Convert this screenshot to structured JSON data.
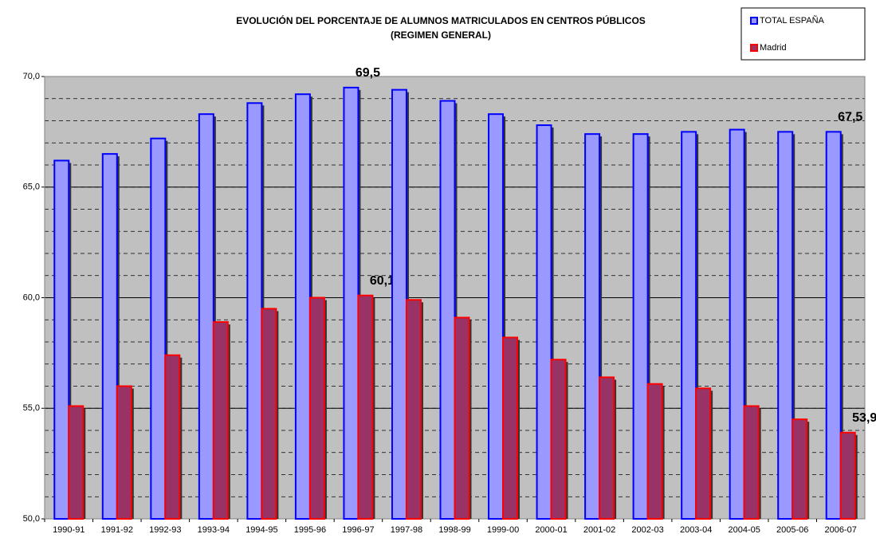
{
  "chart_data": {
    "type": "bar",
    "title": "EVOLUCIÓN DEL PORCENTAJE DE ALUMNOS MATRICULADOS EN CENTROS PÚBLICOS",
    "subtitle": "(REGIMEN GENERAL)",
    "categories": [
      "1990-91",
      "1991-92",
      "1992-93",
      "1993-94",
      "1994-95",
      "1995-96",
      "1996-97",
      "1997-98",
      "1998-99",
      "1999-00",
      "2000-01",
      "2001-02",
      "2002-03",
      "2003-04",
      "2004-05",
      "2005-06",
      "2006-07"
    ],
    "series": [
      {
        "name": "TOTAL ESPAÑA",
        "color": "#9999ff",
        "edge_color": "#0000ff",
        "values": [
          66.2,
          66.5,
          67.2,
          68.3,
          68.8,
          69.2,
          69.5,
          69.4,
          68.9,
          68.3,
          67.8,
          67.4,
          67.4,
          67.5,
          67.6,
          67.5,
          67.5
        ],
        "value_labels": [
          null,
          null,
          null,
          null,
          null,
          null,
          "69,5",
          null,
          null,
          null,
          null,
          null,
          null,
          null,
          null,
          null,
          "67,5"
        ]
      },
      {
        "name": "Madrid",
        "color": "#993366",
        "edge_color": "#ff0000",
        "values": [
          55.1,
          56.0,
          57.4,
          58.9,
          59.5,
          60.0,
          60.1,
          59.9,
          59.1,
          58.2,
          57.2,
          56.4,
          56.1,
          55.9,
          55.1,
          54.5,
          53.9
        ],
        "value_labels": [
          null,
          null,
          null,
          null,
          null,
          null,
          "60,1",
          null,
          null,
          null,
          null,
          null,
          null,
          null,
          null,
          null,
          "53,9"
        ]
      }
    ],
    "ylim": [
      50,
      70
    ],
    "yticks": [
      {
        "value": 50,
        "label": "50,0"
      },
      {
        "value": 55,
        "label": "55,0"
      },
      {
        "value": 60,
        "label": "60,0"
      },
      {
        "value": 65,
        "label": "65,0"
      },
      {
        "value": 70,
        "label": "70,0"
      }
    ],
    "grid": true,
    "minor_grid_step": 1,
    "plot_background": "#c0c0c0",
    "legend": "top-right"
  }
}
